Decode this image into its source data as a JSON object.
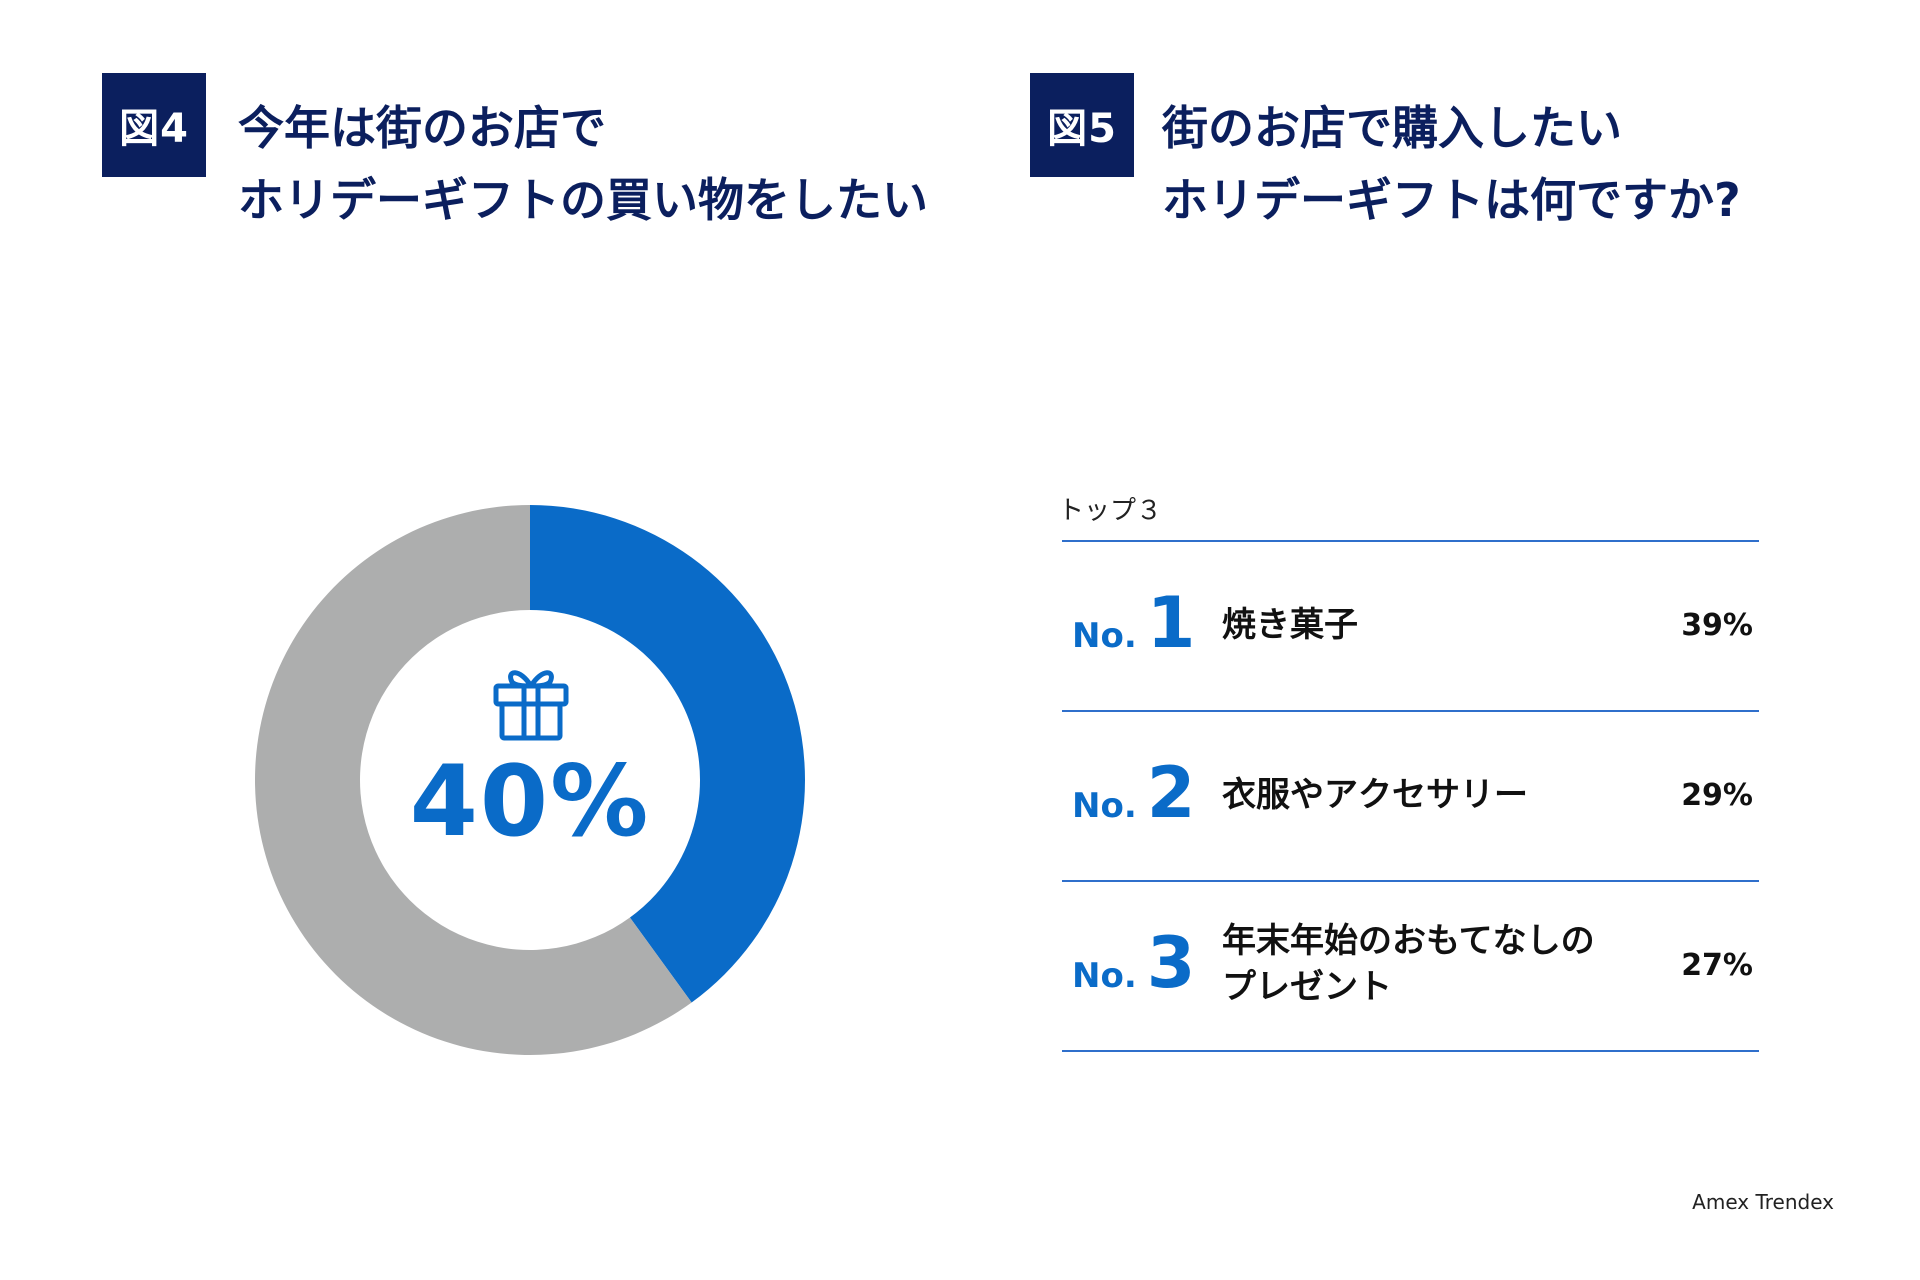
{
  "figure4": {
    "badge": "図4",
    "title_line1": "今年は街のお店で",
    "title_line2": "ホリデーギフトの買い物をしたい"
  },
  "figure5": {
    "badge": "図5",
    "title_line1": "街のお店で購入したい",
    "title_line2": "ホリデーギフトは何ですか?",
    "top_label": "トップ３"
  },
  "source": "Amex Trendex",
  "colors": {
    "navy": "#0b1f5e",
    "blue": "#0a6bc8",
    "gray": "#adaeae",
    "rule": "#2f6fcb"
  },
  "icons": [
    "gift-icon"
  ],
  "chart_data": [
    {
      "type": "pie",
      "variant": "donut",
      "values": [
        40,
        60
      ],
      "colors": [
        "#0a6bc8",
        "#adaeae"
      ],
      "center_label": "40%"
    },
    {
      "type": "table",
      "rows": [
        {
          "rank_prefix": "No.",
          "rank": "1",
          "label_lines": [
            "焼き菓子"
          ],
          "value": "39%"
        },
        {
          "rank_prefix": "No.",
          "rank": "2",
          "label_lines": [
            "衣服やアクセサリー"
          ],
          "value": "29%"
        },
        {
          "rank_prefix": "No.",
          "rank": "3",
          "label_lines": [
            "年末年始のおもてなしの",
            "プレゼント"
          ],
          "value": "27%"
        }
      ]
    }
  ]
}
